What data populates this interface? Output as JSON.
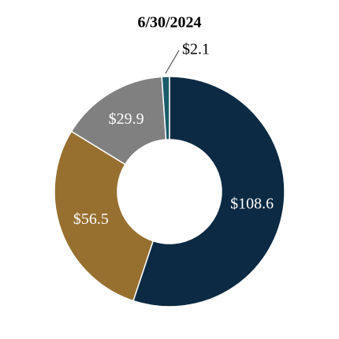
{
  "chart_data": {
    "type": "donut",
    "title": "6/30/2024",
    "values": [
      108.6,
      56.5,
      29.9,
      2.1
    ],
    "value_labels": [
      "$108.6",
      "$56.5",
      "$29.9",
      "$2.1"
    ],
    "colors": [
      "#0c2a43",
      "#977030",
      "#808080",
      "#1a5c6b"
    ]
  }
}
